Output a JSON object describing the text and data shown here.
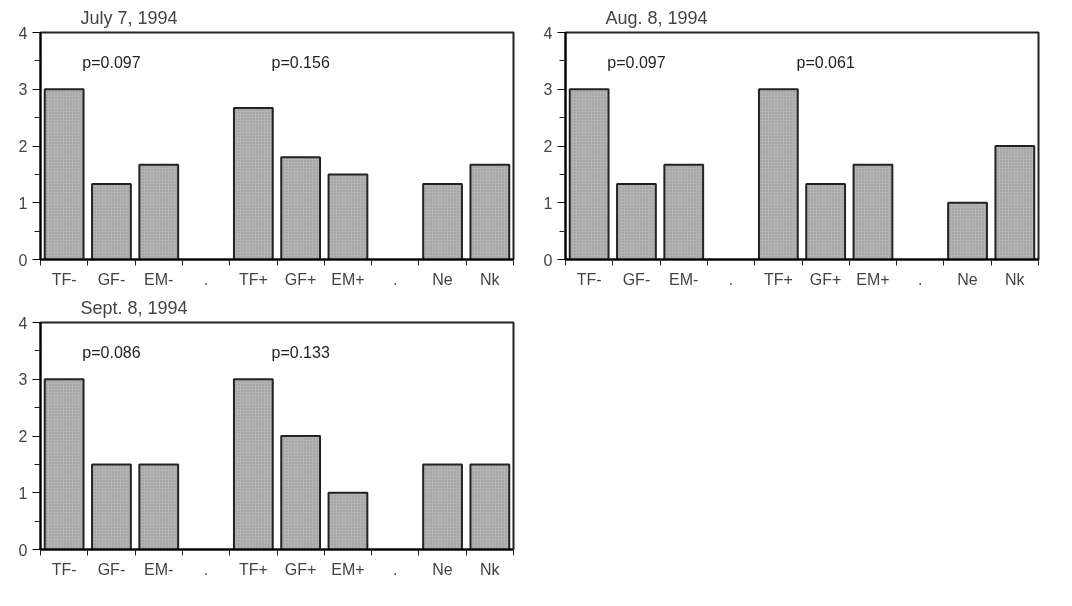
{
  "chart_data": [
    {
      "type": "bar",
      "title": "July 7, 1994",
      "categories": [
        "TF-",
        "GF-",
        "EM-",
        ".",
        "TF+",
        "GF+",
        "EM+",
        ".",
        "Ne",
        "Nk"
      ],
      "series": [
        {
          "color": "#b4b4b4",
          "values": [
            3.0,
            1.33,
            1.67,
            null,
            2.67,
            1.8,
            1.5,
            null,
            1.33,
            1.67
          ]
        }
      ],
      "ylim": [
        0,
        4
      ],
      "yticks": [
        0,
        {
          "value": 0.5,
          "label": null
        },
        1,
        {
          "value": 1.5,
          "label": null
        },
        2,
        {
          "value": 2.5,
          "label": null
        },
        3,
        {
          "value": 3.5,
          "label": null
        },
        4
      ],
      "annotations": [
        "p=0.097",
        "p=0.156"
      ],
      "grid": false
    },
    {
      "type": "bar",
      "title": "Aug. 8, 1994",
      "categories": [
        "TF-",
        "GF-",
        "EM-",
        ".",
        "TF+",
        "GF+",
        "EM+",
        ".",
        "Ne",
        "Nk"
      ],
      "series": [
        {
          "color": "#b4b4b4",
          "values": [
            3.0,
            1.33,
            1.67,
            null,
            3.0,
            1.33,
            1.67,
            null,
            1.0,
            2.0
          ]
        }
      ],
      "ylim": [
        0,
        4
      ],
      "yticks": [
        0,
        {
          "value": 0.5,
          "label": null
        },
        1,
        {
          "value": 1.5,
          "label": null
        },
        2,
        {
          "value": 2.5,
          "label": null
        },
        3,
        {
          "value": 3.5,
          "label": null
        },
        4
      ],
      "annotations": [
        "p=0.097",
        "p=0.061"
      ],
      "grid": false
    },
    {
      "type": "bar",
      "title": "Sept. 8, 1994",
      "categories": [
        "TF-",
        "GF-",
        "EM-",
        ".",
        "TF+",
        "GF+",
        "EM+",
        ".",
        "Ne",
        "Nk"
      ],
      "series": [
        {
          "color": "#b4b4b4",
          "values": [
            3.0,
            1.5,
            1.5,
            null,
            3.0,
            2.0,
            1.0,
            null,
            1.5,
            1.5
          ]
        }
      ],
      "ylim": [
        0,
        4
      ],
      "yticks": [
        0,
        {
          "value": 0.5,
          "label": null
        },
        1,
        {
          "value": 1.5,
          "label": null
        },
        2,
        {
          "value": 2.5,
          "label": null
        },
        3,
        {
          "value": 3.5,
          "label": null
        },
        4
      ],
      "annotations": [
        "p=0.086",
        "p=0.133"
      ],
      "grid": false
    }
  ]
}
